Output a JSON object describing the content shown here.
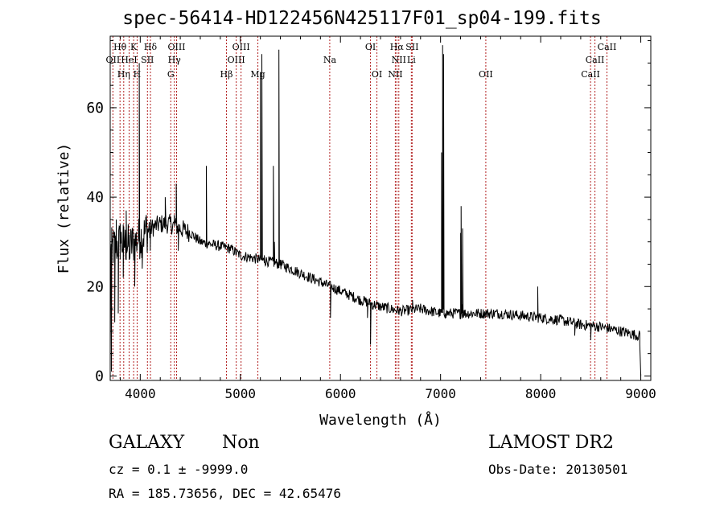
{
  "title": "spec-56414-HD122456N425117F01_sp04-199.fits",
  "info": {
    "class": "GALAXY",
    "subclass": "Non",
    "survey": "LAMOST DR2",
    "cz": "cz = 0.1 ± -9999.0",
    "obs_date": "Obs-Date: 20130501",
    "coords": "RA = 185.73656, DEC =  42.65476"
  },
  "chart_data": {
    "type": "line",
    "xlabel": "Wavelength (Å)",
    "ylabel": "Flux (relative)",
    "xlim": [
      3700,
      9100
    ],
    "ylim": [
      -1,
      76
    ],
    "xticks": [
      4000,
      5000,
      6000,
      7000,
      8000,
      9000
    ],
    "yticks": [
      0,
      20,
      40,
      60
    ],
    "grid": false,
    "colors": {
      "line": "#000000",
      "marker_lines": "#b22222"
    },
    "lines": [
      {
        "label": "Hθ",
        "x": 3798,
        "row": 1
      },
      {
        "label": "OII",
        "x": 3727,
        "row": 2
      },
      {
        "label": "Hη",
        "x": 3835,
        "row": 3
      },
      {
        "label": "HeI",
        "x": 3889,
        "row": 2
      },
      {
        "label": "K",
        "x": 3934,
        "row": 1
      },
      {
        "label": "H",
        "x": 3969,
        "row": 3
      },
      {
        "label": "Hδ",
        "x": 4102,
        "row": 1
      },
      {
        "label": "SII",
        "x": 4072,
        "row": 2
      },
      {
        "label": "OIII",
        "x": 4363,
        "row": 1
      },
      {
        "label": "Hγ",
        "x": 4341,
        "row": 2
      },
      {
        "label": "G",
        "x": 4305,
        "row": 3
      },
      {
        "label": "Hβ",
        "x": 4861,
        "row": 3
      },
      {
        "label": "OIII",
        "x": 4959,
        "row": 2
      },
      {
        "label": "OIII",
        "x": 5007,
        "row": 1
      },
      {
        "label": "Mg",
        "x": 5175,
        "row": 3
      },
      {
        "label": "Na",
        "x": 5893,
        "row": 2
      },
      {
        "label": "OI",
        "x": 6300,
        "row": 1
      },
      {
        "label": "OI",
        "x": 6364,
        "row": 3
      },
      {
        "label": "NII",
        "x": 6548,
        "row": 3
      },
      {
        "label": "Hα",
        "x": 6563,
        "row": 1
      },
      {
        "label": "NII",
        "x": 6583,
        "row": 2
      },
      {
        "label": "SII",
        "x": 6716,
        "row": 1
      },
      {
        "label": "Li",
        "x": 6708,
        "row": 2
      },
      {
        "label": "OII",
        "x": 7452,
        "row": 3
      },
      {
        "label": "CaII",
        "x": 8498,
        "row": 3
      },
      {
        "label": "CaII",
        "x": 8542,
        "row": 2
      },
      {
        "label": "CaII",
        "x": 8662,
        "row": 1
      }
    ],
    "continuum": [
      [
        3700,
        28
      ],
      [
        3800,
        30
      ],
      [
        3900,
        29
      ],
      [
        4000,
        31
      ],
      [
        4100,
        33
      ],
      [
        4200,
        34
      ],
      [
        4300,
        34
      ],
      [
        4400,
        33
      ],
      [
        4500,
        32
      ],
      [
        4600,
        30
      ],
      [
        4700,
        29.5
      ],
      [
        4800,
        29
      ],
      [
        4900,
        28.5
      ],
      [
        5000,
        27
      ],
      [
        5100,
        26.5
      ],
      [
        5200,
        26
      ],
      [
        5400,
        25
      ],
      [
        5600,
        23
      ],
      [
        5800,
        21
      ],
      [
        6000,
        19
      ],
      [
        6200,
        17
      ],
      [
        6400,
        15.5
      ],
      [
        6600,
        14.5
      ],
      [
        6800,
        15
      ],
      [
        7000,
        14
      ],
      [
        7200,
        14
      ],
      [
        7400,
        14
      ],
      [
        7600,
        14
      ],
      [
        7800,
        13.5
      ],
      [
        8000,
        13
      ],
      [
        8200,
        12.5
      ],
      [
        8400,
        11.5
      ],
      [
        8600,
        11
      ],
      [
        8800,
        10
      ],
      [
        8980,
        9
      ]
    ],
    "features": [
      {
        "x": 3700,
        "y": 6
      },
      {
        "x": 3712,
        "y": 1
      },
      {
        "x": 3730,
        "y": 30
      },
      {
        "x": 3745,
        "y": 12
      },
      {
        "x": 3760,
        "y": 35
      },
      {
        "x": 3780,
        "y": 14
      },
      {
        "x": 3800,
        "y": 34
      },
      {
        "x": 3830,
        "y": 22
      },
      {
        "x": 3860,
        "y": 37
      },
      {
        "x": 3890,
        "y": 26
      },
      {
        "x": 3920,
        "y": 33
      },
      {
        "x": 3945,
        "y": 20
      },
      {
        "x": 3960,
        "y": 32
      },
      {
        "x": 3990,
        "y": 70
      },
      {
        "x": 4000,
        "y": 30
      },
      {
        "x": 4020,
        "y": 24
      },
      {
        "x": 4060,
        "y": 36
      },
      {
        "x": 4100,
        "y": 28
      },
      {
        "x": 4250,
        "y": 40
      },
      {
        "x": 4340,
        "y": 36
      },
      {
        "x": 4360,
        "y": 43
      },
      {
        "x": 4380,
        "y": 28
      },
      {
        "x": 4660,
        "y": 47
      },
      {
        "x": 4680,
        "y": 30
      },
      {
        "x": 5200,
        "y": 68
      },
      {
        "x": 5215,
        "y": 72
      },
      {
        "x": 5240,
        "y": 27
      },
      {
        "x": 5330,
        "y": 47
      },
      {
        "x": 5340,
        "y": 30
      },
      {
        "x": 5385,
        "y": 73
      },
      {
        "x": 5400,
        "y": 26
      },
      {
        "x": 5900,
        "y": 13
      },
      {
        "x": 6270,
        "y": 13
      },
      {
        "x": 6300,
        "y": 7
      },
      {
        "x": 6320,
        "y": 15
      },
      {
        "x": 6720,
        "y": 17
      },
      {
        "x": 7000,
        "y": 15
      },
      {
        "x": 7010,
        "y": 50
      },
      {
        "x": 7020,
        "y": 74
      },
      {
        "x": 7030,
        "y": 72
      },
      {
        "x": 7045,
        "y": 14
      },
      {
        "x": 7190,
        "y": 15
      },
      {
        "x": 7200,
        "y": 32
      },
      {
        "x": 7205,
        "y": 38
      },
      {
        "x": 7215,
        "y": 16
      },
      {
        "x": 7220,
        "y": 33
      },
      {
        "x": 7240,
        "y": 14
      },
      {
        "x": 7970,
        "y": 20
      },
      {
        "x": 7985,
        "y": 14
      },
      {
        "x": 8340,
        "y": 9
      },
      {
        "x": 8500,
        "y": 8
      },
      {
        "x": 8990,
        "y": 7
      },
      {
        "x": 9000,
        "y": 0
      }
    ]
  }
}
